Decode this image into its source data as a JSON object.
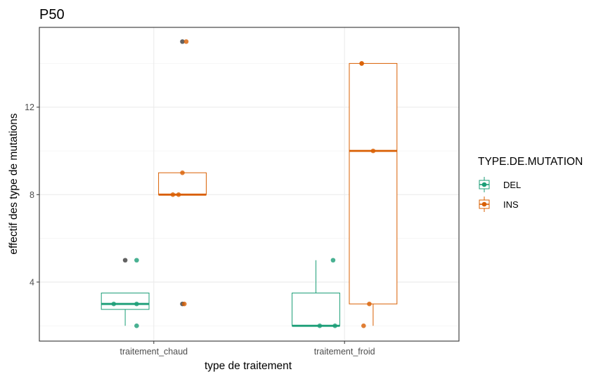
{
  "chart_data": {
    "type": "box",
    "title": "P50",
    "xlabel": "type de traitement",
    "ylabel": "effectif des type de mutations",
    "categories": [
      "traitement_chaud",
      "traitement_froid"
    ],
    "ylim": [
      1.3,
      15.65
    ],
    "yticks": [
      4,
      8,
      12
    ],
    "grid": true,
    "legend": {
      "title": "TYPE.DE.MUTATION",
      "position": "right",
      "entries": [
        {
          "name": "DEL",
          "color": "#1B9E77"
        },
        {
          "name": "INS",
          "color": "#D95F02"
        }
      ]
    },
    "series": [
      {
        "name": "DEL",
        "color": "#1B9E77",
        "boxes": [
          {
            "category": "traitement_chaud",
            "whisker_low": 2,
            "q1": 2.75,
            "median": 3,
            "q3": 3.5,
            "whisker_high": 3.5,
            "outliers": [
              5
            ],
            "points": [
              {
                "offset": -0.06,
                "y": 3
              },
              {
                "offset": 0.06,
                "y": 5
              },
              {
                "offset": 0.06,
                "y": 3
              },
              {
                "offset": 0.06,
                "y": 2
              }
            ]
          },
          {
            "category": "traitement_froid",
            "whisker_low": 2,
            "q1": 2,
            "median": 2,
            "q3": 3.5,
            "whisker_high": 5,
            "outliers": [],
            "points": [
              {
                "offset": 0.02,
                "y": 2
              },
              {
                "offset": 0.09,
                "y": 5
              },
              {
                "offset": 0.1,
                "y": 2
              }
            ]
          }
        ]
      },
      {
        "name": "INS",
        "color": "#D95F02",
        "boxes": [
          {
            "category": "traitement_chaud",
            "whisker_low": 8,
            "q1": 8,
            "median": 8,
            "q3": 9,
            "whisker_high": 9,
            "outliers": [
              3,
              15
            ],
            "points": [
              {
                "offset": -0.05,
                "y": 8
              },
              {
                "offset": -0.02,
                "y": 8
              },
              {
                "offset": 0.0,
                "y": 9
              },
              {
                "offset": 0.01,
                "y": 3
              },
              {
                "offset": 0.02,
                "y": 15
              }
            ]
          },
          {
            "category": "traitement_froid",
            "whisker_low": 2,
            "q1": 3,
            "median": 10,
            "q3": 14,
            "whisker_high": 14,
            "outliers": [],
            "points": [
              {
                "offset": -0.06,
                "y": 14
              },
              {
                "offset": -0.06,
                "y": 14
              },
              {
                "offset": -0.05,
                "y": 2
              },
              {
                "offset": 0.0,
                "y": 10
              },
              {
                "offset": -0.02,
                "y": 3
              }
            ]
          }
        ]
      }
    ]
  }
}
